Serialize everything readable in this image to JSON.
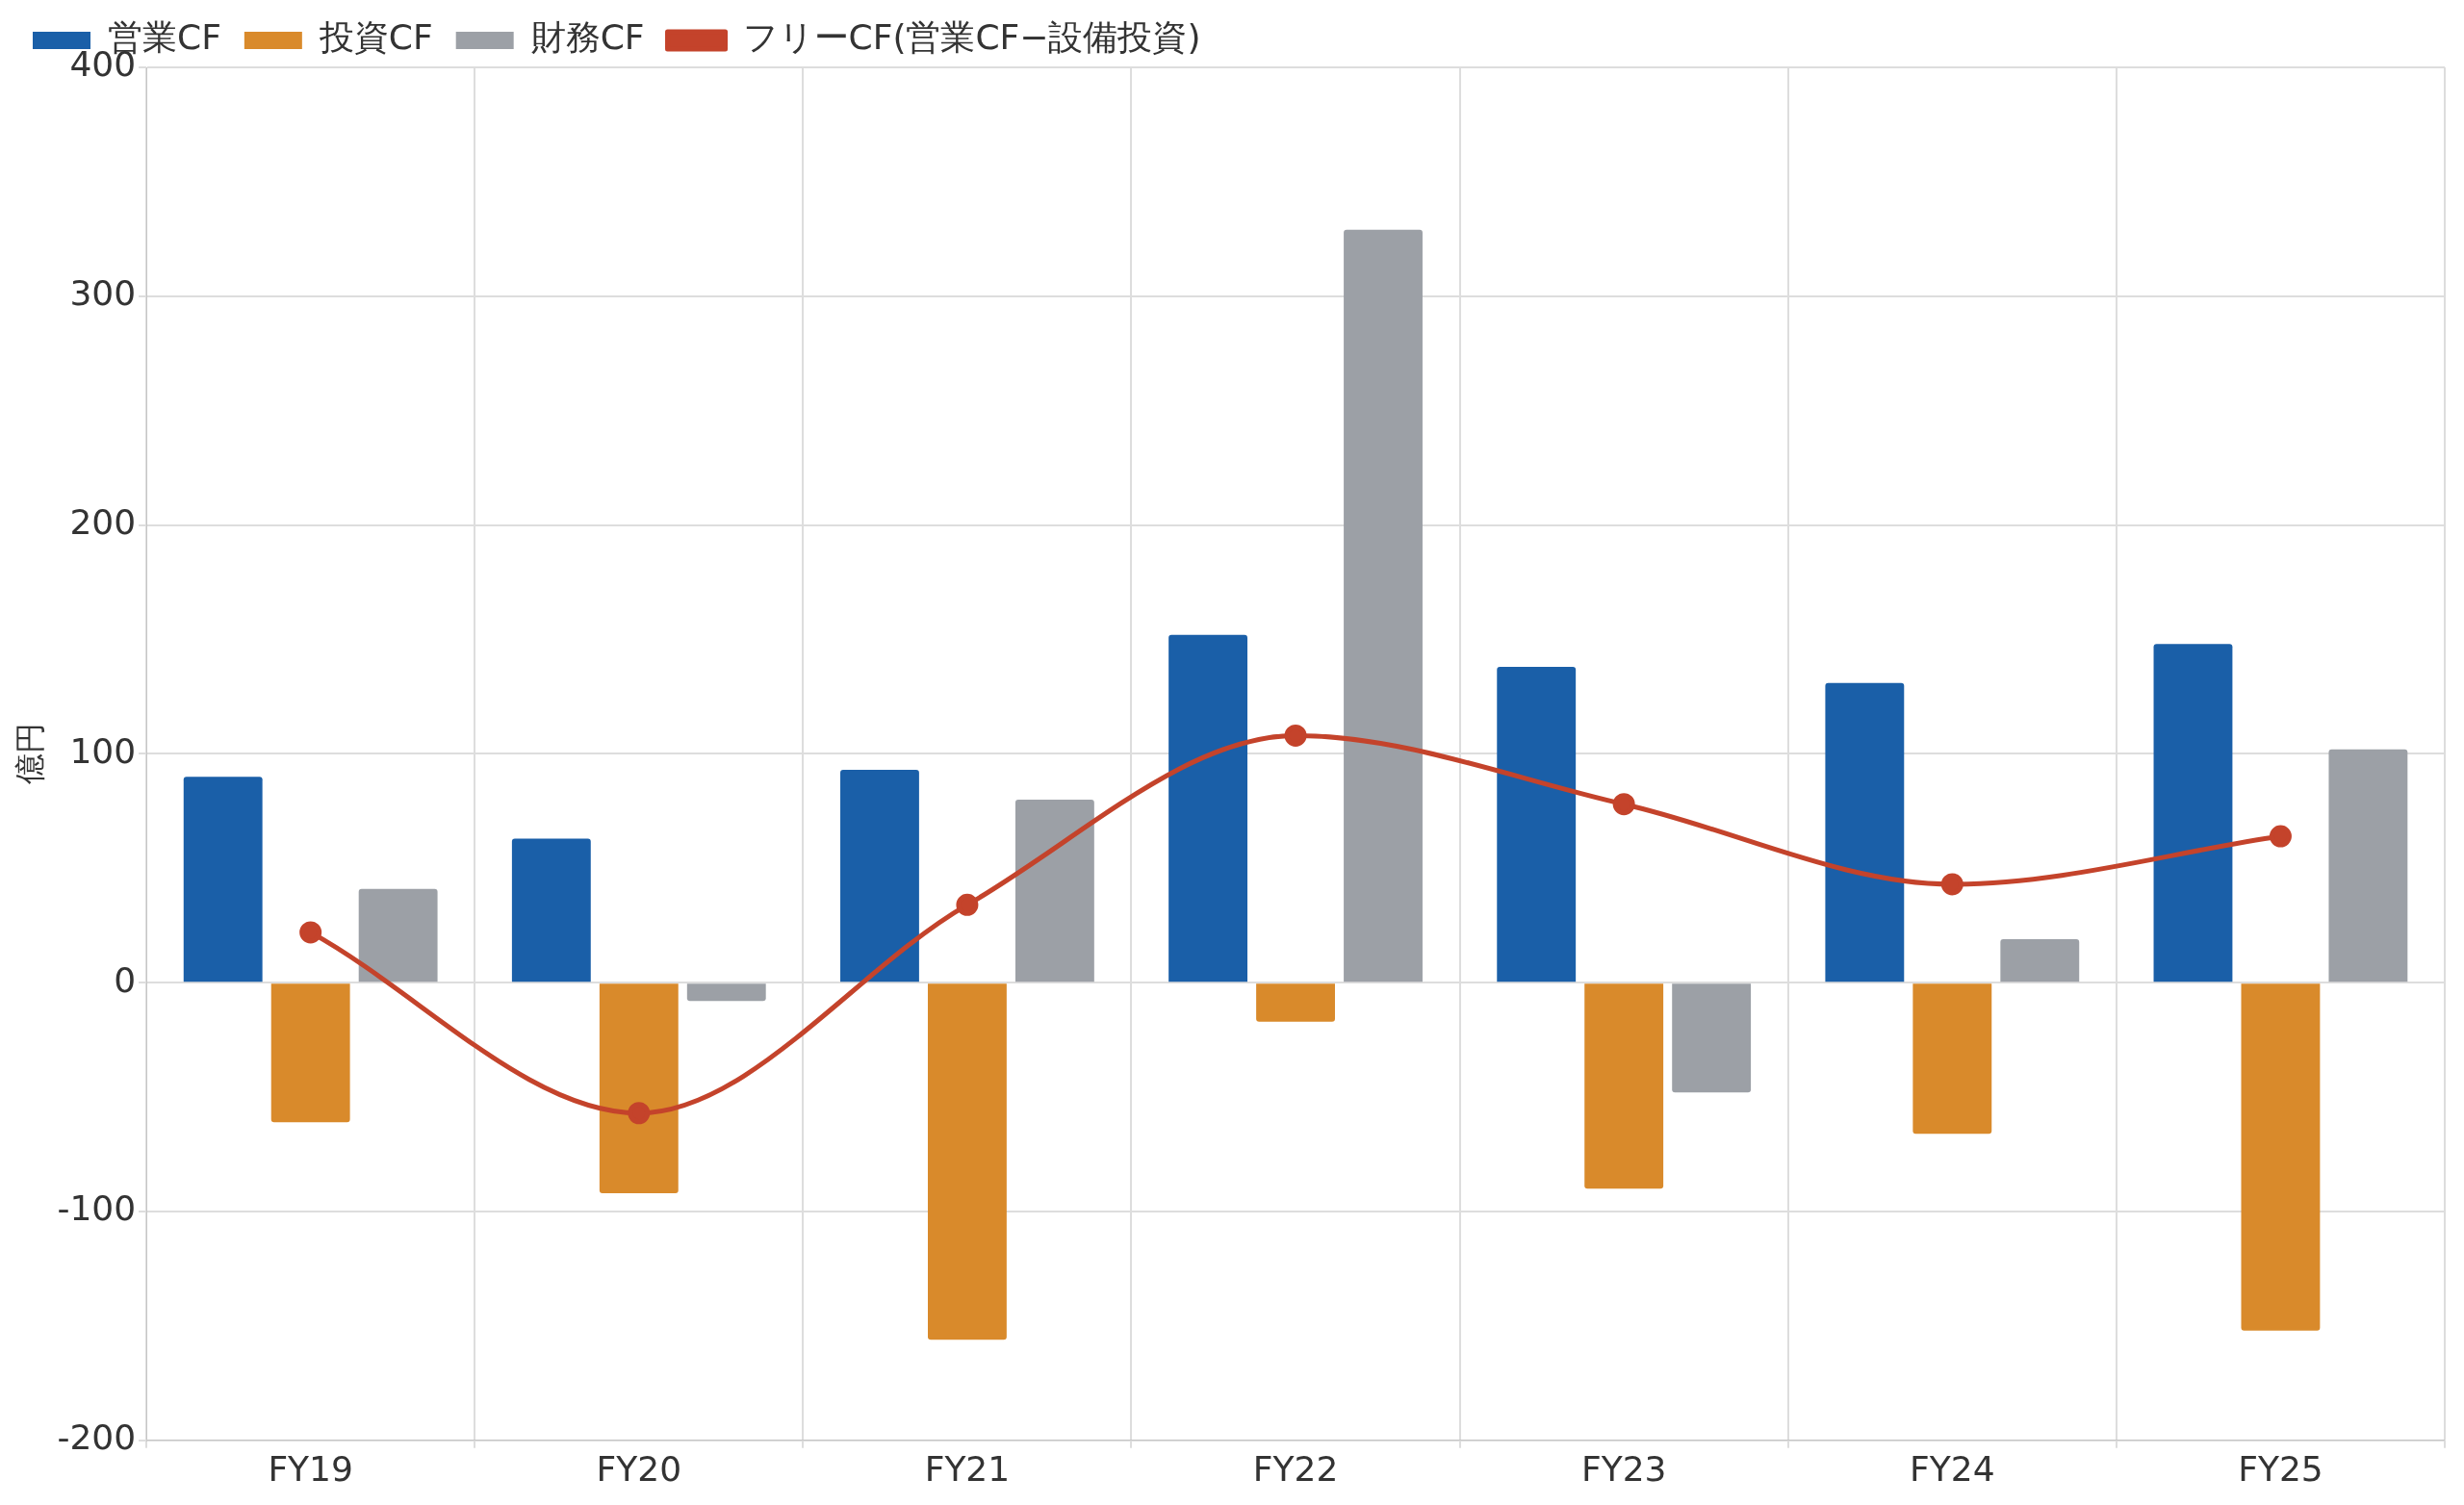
{
  "chart_data": {
    "type": "bar",
    "ylabel": "億円",
    "categories": [
      "FY19",
      "FY20",
      "FY21",
      "FY22",
      "FY23",
      "FY24",
      "FY25"
    ],
    "series": [
      {
        "name": "営業CF",
        "color": "#1a5fa8",
        "values": [
          90,
          63,
          93,
          152,
          138,
          131,
          148
        ]
      },
      {
        "name": "投資CF",
        "color": "#d98a2b",
        "values": [
          -61,
          -92,
          -156,
          -17,
          -90,
          -66,
          -152
        ]
      },
      {
        "name": "財務CF",
        "color": "#9ca0a6",
        "values": [
          41,
          -8,
          80,
          329,
          -48,
          19,
          102
        ]
      },
      {
        "name": "フリーCF(営業CF−設備投資)",
        "color": "#c4432b",
        "type": "line",
        "values": [
          22,
          -57,
          34,
          108,
          78,
          43,
          64
        ]
      }
    ],
    "ylim": [
      -200,
      400
    ],
    "yticks": [
      -200,
      -100,
      0,
      100,
      200,
      300,
      400
    ],
    "grid": true,
    "legend": "top left",
    "marker": "circle"
  }
}
